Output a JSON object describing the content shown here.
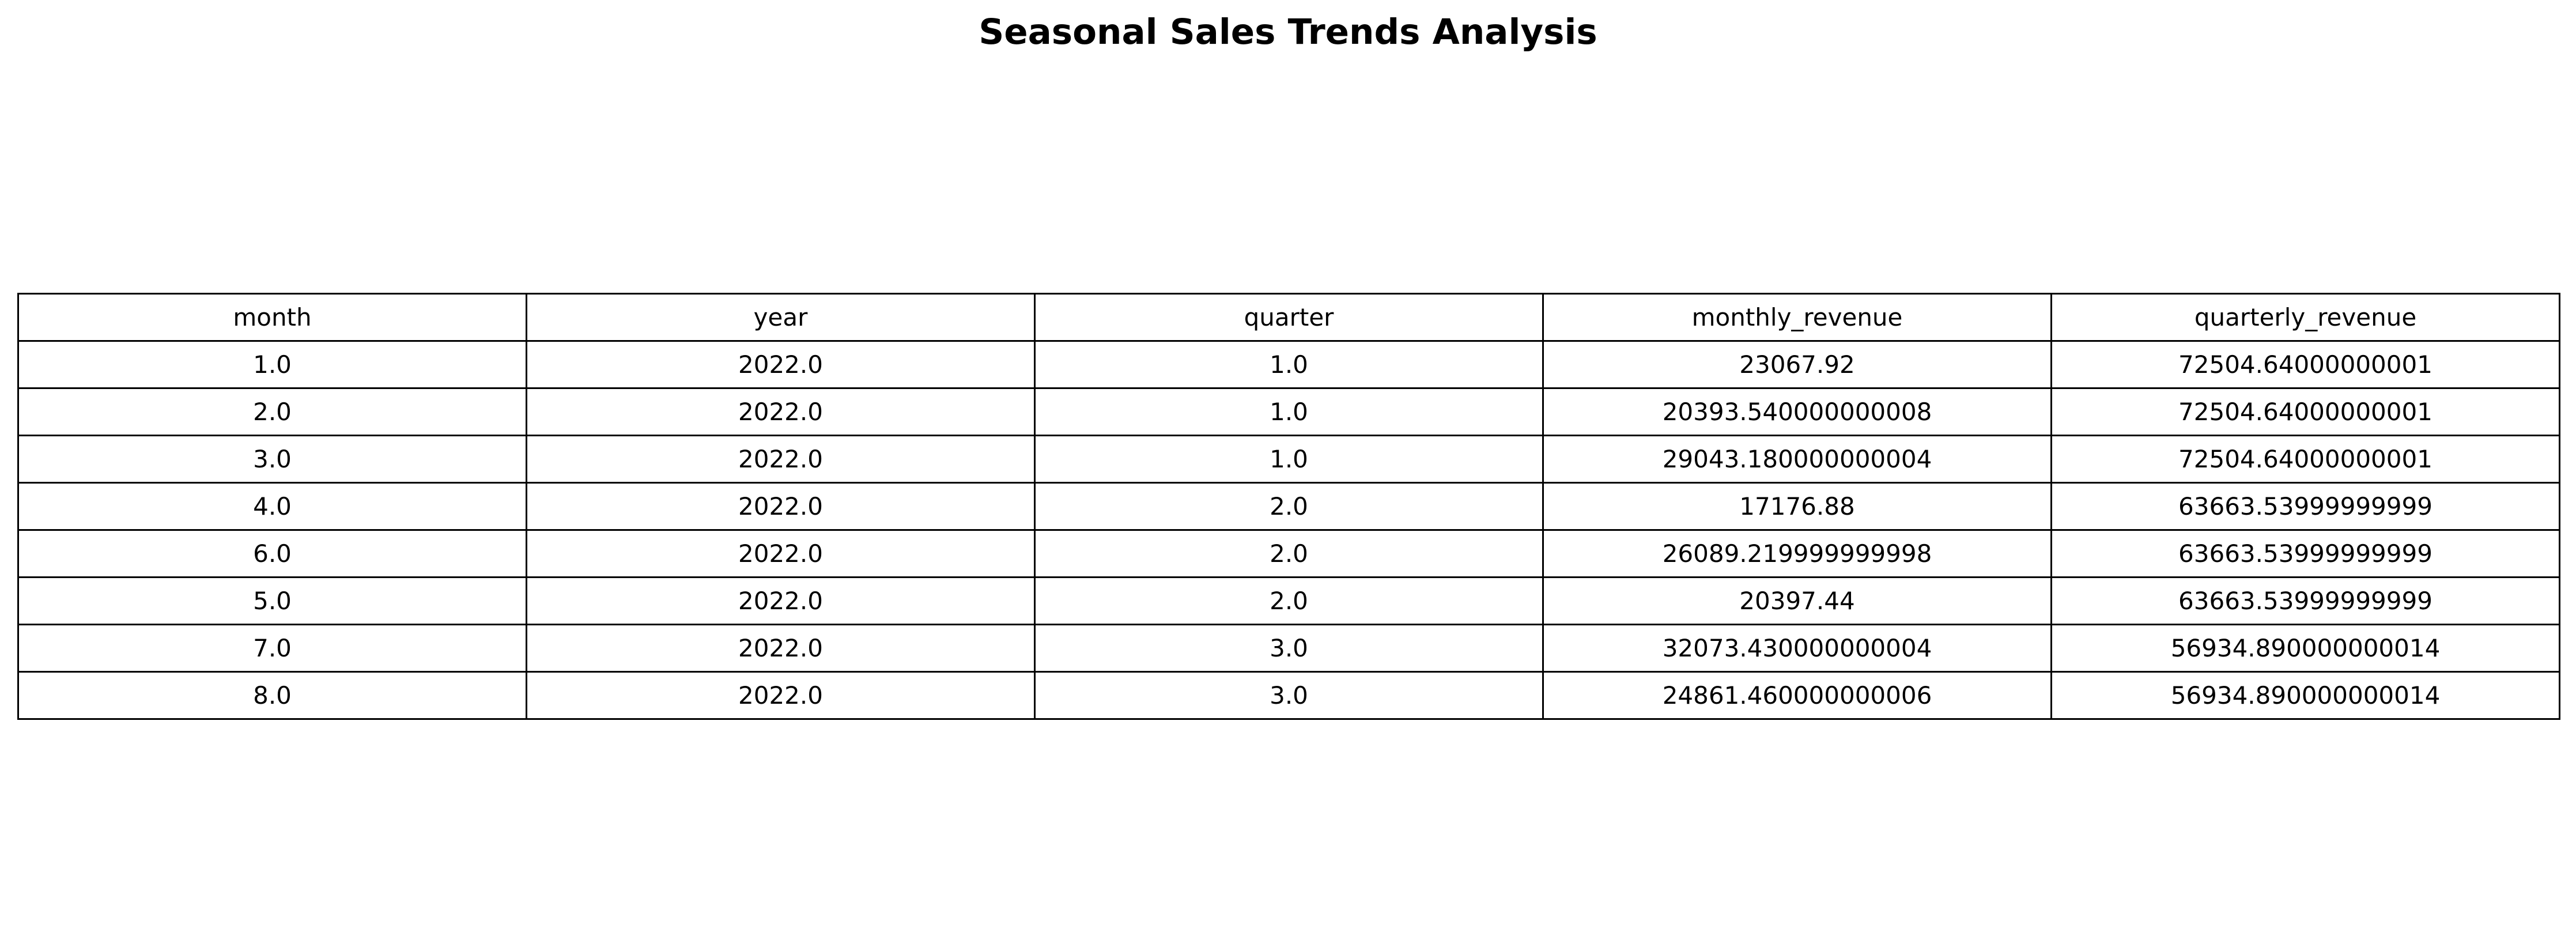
{
  "chart_data": {
    "type": "table",
    "title": "Seasonal Sales Trends Analysis",
    "columns": [
      "month",
      "year",
      "quarter",
      "monthly_revenue",
      "quarterly_revenue"
    ],
    "rows": [
      [
        "1.0",
        "2022.0",
        "1.0",
        "23067.92",
        "72504.64000000001"
      ],
      [
        "2.0",
        "2022.0",
        "1.0",
        "20393.540000000008",
        "72504.64000000001"
      ],
      [
        "3.0",
        "2022.0",
        "1.0",
        "29043.180000000004",
        "72504.64000000001"
      ],
      [
        "4.0",
        "2022.0",
        "2.0",
        "17176.88",
        "63663.53999999999"
      ],
      [
        "6.0",
        "2022.0",
        "2.0",
        "26089.219999999998",
        "63663.53999999999"
      ],
      [
        "5.0",
        "2022.0",
        "2.0",
        "20397.44",
        "63663.53999999999"
      ],
      [
        "7.0",
        "2022.0",
        "3.0",
        "32073.430000000004",
        "56934.890000000014"
      ],
      [
        "8.0",
        "2022.0",
        "3.0",
        "24861.460000000006",
        "56934.890000000014"
      ]
    ]
  }
}
